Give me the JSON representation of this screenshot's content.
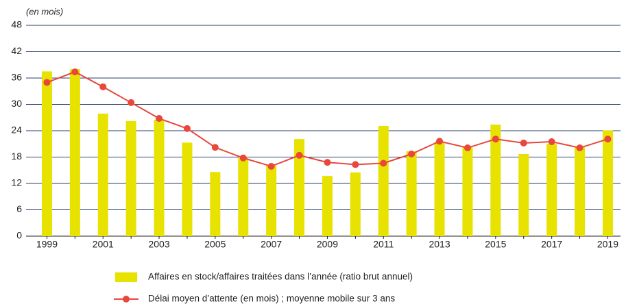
{
  "chart_data": {
    "type": "combo",
    "unit_label": "(en mois)",
    "categories": [
      "1999",
      null,
      "2001",
      null,
      "2003",
      null,
      "2005",
      null,
      "2007",
      null,
      "2009",
      null,
      "2011",
      null,
      "2013",
      null,
      "2015",
      null,
      "2017",
      null,
      "2019"
    ],
    "series": [
      {
        "name": "Affaires en stock/affaires traitées dans l’année (ratio brut annuel)",
        "type": "bar",
        "color": "#e8e200",
        "values": [
          37.5,
          38,
          27.9,
          26.2,
          26.5,
          21.3,
          14.6,
          17.8,
          16,
          22.1,
          13.7,
          14.5,
          25.1,
          19.3,
          21.5,
          20.5,
          25.4,
          18.7,
          21,
          20.5,
          24.1
        ]
      },
      {
        "name": "Délai moyen d’attente (en mois) ; moyenne mobile sur 3 ans",
        "type": "line",
        "color": "#e8473c",
        "values": [
          35,
          37.4,
          34,
          30.4,
          26.8,
          24.5,
          20.2,
          17.8,
          15.9,
          18.4,
          16.8,
          16.3,
          16.6,
          18.7,
          21.6,
          20.1,
          22.1,
          21.2,
          21.5,
          20.1,
          22.1
        ]
      }
    ],
    "ylim": [
      0,
      48
    ],
    "yticks": [
      0,
      6,
      12,
      18,
      24,
      30,
      36,
      42,
      48
    ],
    "grid": true
  }
}
